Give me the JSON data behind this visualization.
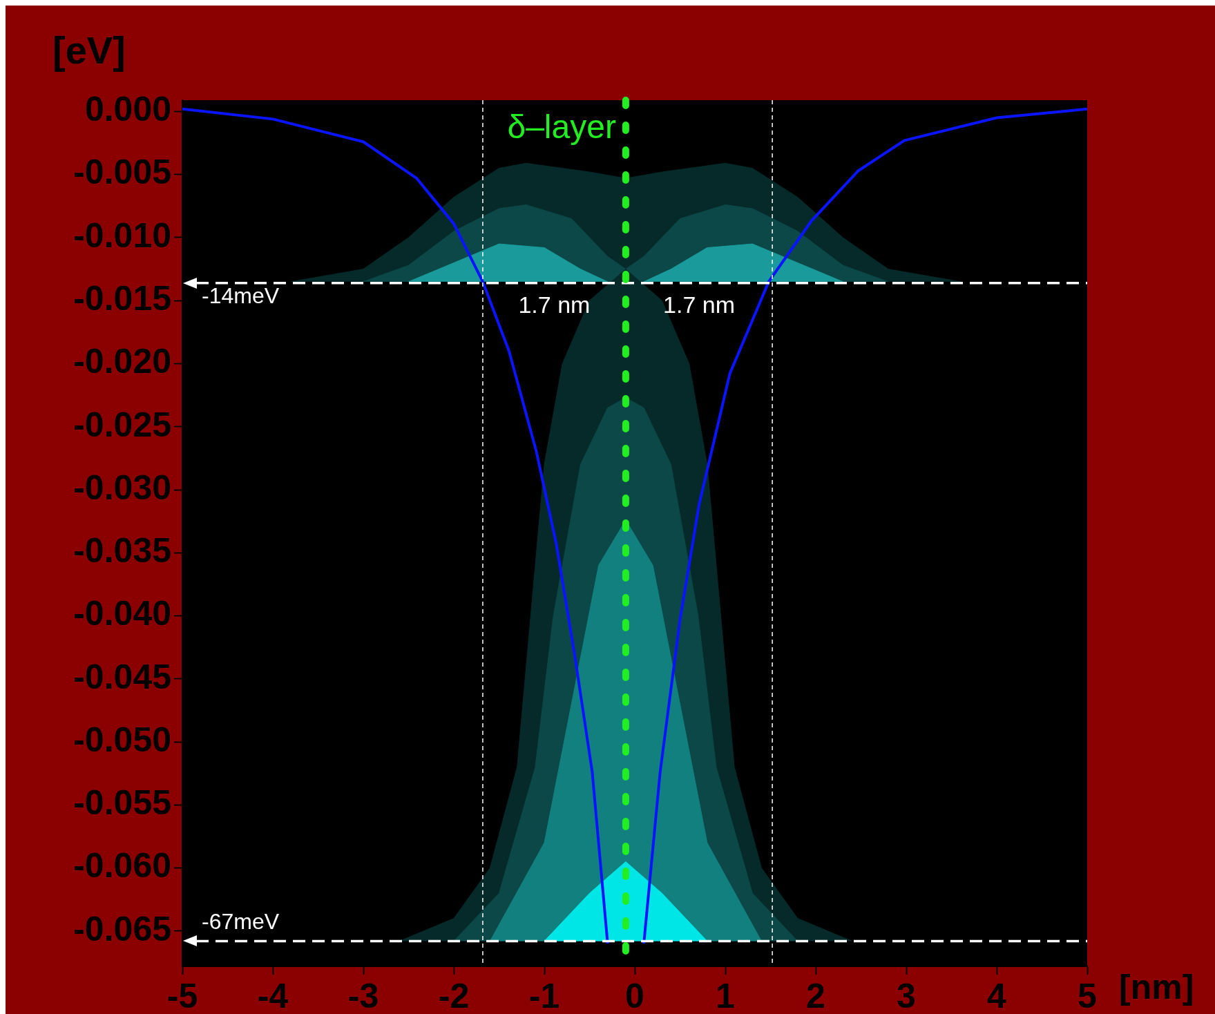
{
  "chart_data": {
    "type": "line",
    "xlabel": "[nm]",
    "ylabel": "[eV]",
    "xlim": [
      -5,
      5
    ],
    "xticks": [
      -5,
      -4,
      -3,
      -2,
      -1,
      0,
      1,
      2,
      3,
      4,
      5
    ],
    "ylim": [
      -0.0678,
      0.0009
    ],
    "yticks": [
      {
        "value": 0,
        "label": "0.000"
      },
      {
        "value": -0.005,
        "label": "-0.005"
      },
      {
        "value": -0.01,
        "label": "-0.010"
      },
      {
        "value": -0.015,
        "label": "-0.015"
      },
      {
        "value": -0.02,
        "label": "-0.020"
      },
      {
        "value": -0.025,
        "label": "-0.025"
      },
      {
        "value": -0.03,
        "label": "-0.030"
      },
      {
        "value": -0.035,
        "label": "-0.035"
      },
      {
        "value": -0.04,
        "label": "-0.040"
      },
      {
        "value": -0.045,
        "label": "-0.045"
      },
      {
        "value": -0.05,
        "label": "-0.050"
      },
      {
        "value": -0.055,
        "label": "-0.055"
      },
      {
        "value": -0.06,
        "label": "-0.060"
      },
      {
        "value": -0.065,
        "label": "-0.065"
      }
    ],
    "grid": false,
    "legend": false,
    "marker": "none",
    "series": [
      {
        "type": "area",
        "color": "#062a2a",
        "x": [
          -3.8,
          -3,
          -2.5,
          -2,
          -1.5,
          -1.2,
          -0.5,
          -0.1,
          0.3,
          1,
          1.3,
          1.8,
          2.3,
          2.8,
          3.6
        ],
        "values": [
          -0.0135,
          -0.0125,
          -0.01,
          -0.0068,
          -0.0045,
          -0.0041,
          -0.0048,
          -0.0053,
          -0.0048,
          -0.0041,
          -0.0045,
          -0.0068,
          -0.01,
          -0.0125,
          -0.0135
        ]
      },
      {
        "type": "area",
        "color": "#0c4848",
        "x": [
          -3,
          -2.5,
          -2,
          -1.5,
          -1.2,
          -0.7,
          -0.3,
          -0.1,
          0.1,
          0.5,
          1,
          1.3,
          1.8,
          2.3,
          2.8
        ],
        "values": [
          -0.0135,
          -0.0122,
          -0.0095,
          -0.0077,
          -0.0074,
          -0.0085,
          -0.0115,
          -0.0125,
          -0.0115,
          -0.0085,
          -0.0074,
          -0.0077,
          -0.0095,
          -0.0122,
          -0.0135
        ]
      },
      {
        "type": "area",
        "color": "#1a9a9a",
        "x": [
          -2.5,
          -2,
          -1.5,
          -1,
          -0.6,
          -0.3
        ],
        "values": [
          -0.0135,
          -0.012,
          -0.0105,
          -0.0108,
          -0.0125,
          -0.0135
        ]
      },
      {
        "type": "area",
        "color": "#1a9a9a",
        "x": [
          0.1,
          0.4,
          0.8,
          1.3,
          1.8,
          2.3
        ],
        "values": [
          -0.0135,
          -0.0125,
          -0.0108,
          -0.0105,
          -0.012,
          -0.0135
        ]
      },
      {
        "type": "area",
        "color": "#062a2a",
        "x": [
          -2.6,
          -2,
          -1.6,
          -1.3,
          -1.15,
          -1,
          -0.8,
          -0.5,
          -0.1,
          0.3,
          0.6,
          0.8,
          0.95,
          1.1,
          1.4,
          1.8,
          2.4
        ],
        "values": [
          -0.0658,
          -0.064,
          -0.06,
          -0.052,
          -0.04,
          -0.028,
          -0.02,
          -0.015,
          -0.0125,
          -0.015,
          -0.02,
          -0.028,
          -0.04,
          -0.052,
          -0.06,
          -0.064,
          -0.0658
        ]
      },
      {
        "type": "area",
        "color": "#0c4848",
        "x": [
          -2,
          -1.5,
          -1.1,
          -0.9,
          -0.6,
          -0.3,
          -0.1,
          0.1,
          0.4,
          0.7,
          0.9,
          1.3,
          1.8
        ],
        "values": [
          -0.0658,
          -0.062,
          -0.052,
          -0.04,
          -0.028,
          -0.0235,
          -0.0227,
          -0.0235,
          -0.028,
          -0.04,
          -0.052,
          -0.062,
          -0.0658
        ]
      },
      {
        "type": "area",
        "color": "#138080",
        "x": [
          -1.6,
          -1,
          -0.7,
          -0.4,
          -0.1,
          0.2,
          0.5,
          0.8,
          1.4
        ],
        "values": [
          -0.0658,
          -0.058,
          -0.047,
          -0.036,
          -0.0324,
          -0.036,
          -0.047,
          -0.058,
          -0.0658
        ]
      },
      {
        "type": "area",
        "color": "#00e5e5",
        "x": [
          -1,
          -0.5,
          -0.1,
          0.3,
          0.8
        ],
        "values": [
          -0.0658,
          -0.062,
          -0.0595,
          -0.062,
          -0.0658
        ]
      },
      {
        "color": "#0a14ff",
        "x": [
          -5,
          -4,
          -3,
          -2.41,
          -2,
          -1.68,
          -1.39,
          -1.09,
          -0.87,
          -0.66,
          -0.47,
          -0.3,
          -0.1,
          0.1,
          0.28,
          0.5,
          0.71,
          1.05,
          1.48,
          1.95,
          2.47,
          2.98,
          4,
          5
        ],
        "values": [
          0.0002,
          -0.0006,
          -0.0024,
          -0.0053,
          -0.0089,
          -0.0135,
          -0.019,
          -0.0269,
          -0.0342,
          -0.0433,
          -0.0524,
          -0.066,
          null,
          -0.066,
          -0.0524,
          -0.0403,
          -0.0312,
          -0.0208,
          -0.0135,
          -0.0087,
          -0.0047,
          -0.0023,
          -0.0005,
          0.0002
        ]
      }
    ],
    "ref_lines": [
      {
        "axis": "y",
        "value": -0.0136,
        "label": "-14meV",
        "color": "#ffffff",
        "line_style": "dashed"
      },
      {
        "axis": "y",
        "value": -0.0658,
        "label": "-67meV",
        "color": "#ffffff",
        "line_style": "dashed"
      },
      {
        "axis": "x",
        "value": -1.68,
        "color": "#ffffff",
        "line_style": "dashed"
      },
      {
        "axis": "x",
        "value": 1.52,
        "color": "#ffffff",
        "line_style": "dashed"
      },
      {
        "axis": "x",
        "value": -0.1,
        "label": "δ–layer",
        "color": "#22ee22",
        "line_style": "dotted"
      }
    ],
    "annotations": [
      "1.7 nm",
      "1.7 nm"
    ]
  }
}
